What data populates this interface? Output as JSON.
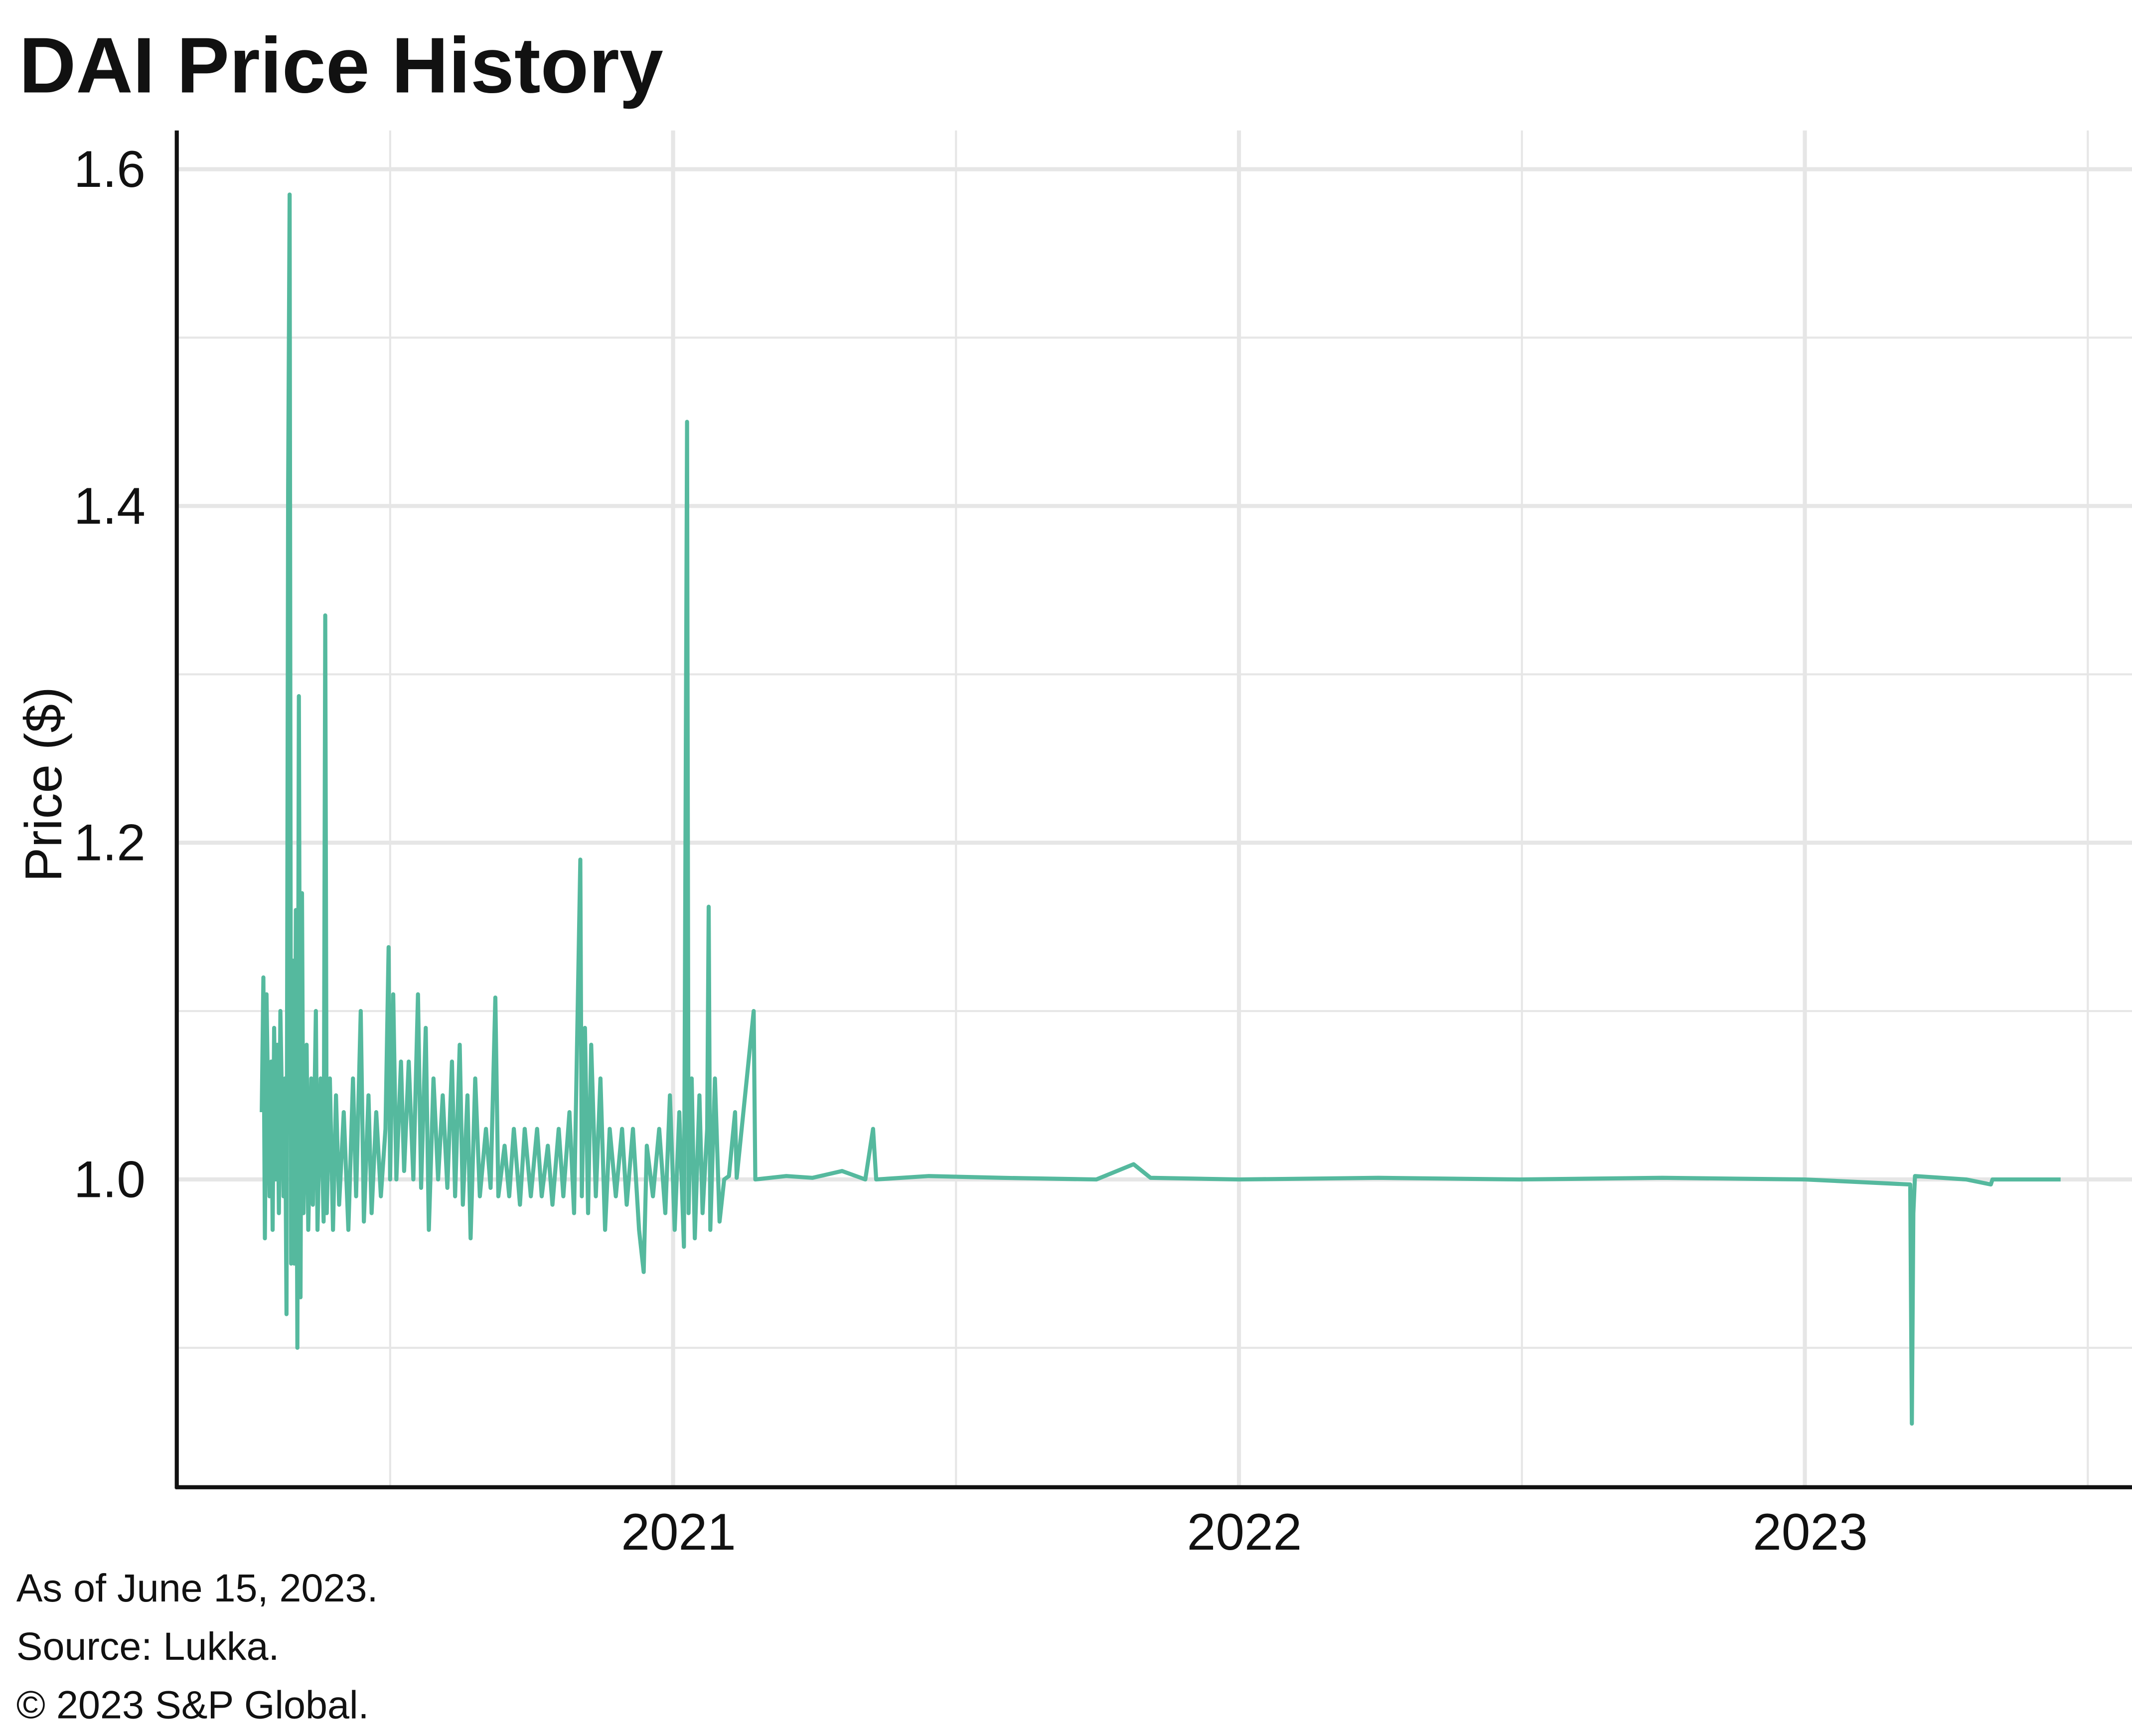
{
  "chart_data": {
    "type": "line",
    "title": "DAI Price History",
    "xlabel": "",
    "ylabel": "Price ($)",
    "xlim": [
      "2020-02-15",
      "2023-07-31"
    ],
    "ylim": [
      0.818,
      1.623
    ],
    "grid": true,
    "legend": "none",
    "x_ticks": [
      "2021",
      "2022",
      "2023"
    ],
    "y_ticks": [
      "1.0",
      "1.2",
      "1.4",
      "1.6"
    ],
    "y_tick_values": [
      1.0,
      1.2,
      1.4,
      1.6
    ],
    "y_minor_gridlines": [
      0.9,
      1.1,
      1.3,
      1.5
    ],
    "x_tick_values": [
      2021,
      2022,
      2023
    ],
    "x_minor_gridlines": [
      2020.5,
      2021.5,
      2022.5,
      2023.5
    ],
    "line_color": "#55b99e",
    "series": [
      {
        "points": [
          [
            "2020-04-10",
            1.04
          ],
          [
            "2020-04-11",
            1.12
          ],
          [
            "2020-04-12",
            0.965
          ],
          [
            "2020-04-13",
            1.11
          ],
          [
            "2020-04-15",
            0.99
          ],
          [
            "2020-04-16",
            1.07
          ],
          [
            "2020-04-17",
            0.97
          ],
          [
            "2020-04-18",
            1.09
          ],
          [
            "2020-04-19",
            1.0
          ],
          [
            "2020-04-20",
            1.08
          ],
          [
            "2020-04-21",
            0.98
          ],
          [
            "2020-04-22",
            1.1
          ],
          [
            "2020-04-24",
            0.99
          ],
          [
            "2020-04-25",
            1.06
          ],
          [
            "2020-04-26",
            0.92
          ],
          [
            "2020-04-27",
            1.41
          ],
          [
            "2020-04-28",
            1.585
          ],
          [
            "2020-04-29",
            0.95
          ],
          [
            "2020-04-30",
            1.13
          ],
          [
            "2020-05-01",
            0.95
          ],
          [
            "2020-05-02",
            1.16
          ],
          [
            "2020-05-03",
            0.9
          ],
          [
            "2020-05-04",
            1.287
          ],
          [
            "2020-05-05",
            0.93
          ],
          [
            "2020-05-06",
            1.17
          ],
          [
            "2020-05-07",
            0.98
          ],
          [
            "2020-05-09",
            1.08
          ],
          [
            "2020-05-10",
            0.97
          ],
          [
            "2020-05-12",
            1.06
          ],
          [
            "2020-05-13",
            0.985
          ],
          [
            "2020-05-15",
            1.1
          ],
          [
            "2020-05-16",
            0.97
          ],
          [
            "2020-05-18",
            1.06
          ],
          [
            "2020-05-20",
            0.975
          ],
          [
            "2020-05-21",
            1.335
          ],
          [
            "2020-05-22",
            0.98
          ],
          [
            "2020-05-24",
            1.06
          ],
          [
            "2020-05-26",
            0.97
          ],
          [
            "2020-05-28",
            1.05
          ],
          [
            "2020-05-30",
            0.985
          ],
          [
            "2020-06-02",
            1.04
          ],
          [
            "2020-06-05",
            0.97
          ],
          [
            "2020-06-08",
            1.06
          ],
          [
            "2020-06-10",
            0.99
          ],
          [
            "2020-06-13",
            1.1
          ],
          [
            "2020-06-15",
            0.975
          ],
          [
            "2020-06-18",
            1.05
          ],
          [
            "2020-06-20",
            0.98
          ],
          [
            "2020-06-23",
            1.04
          ],
          [
            "2020-06-26",
            0.99
          ],
          [
            "2020-06-29",
            1.03
          ],
          [
            "2020-07-01",
            1.138
          ],
          [
            "2020-07-02",
            1.0
          ],
          [
            "2020-07-04",
            1.11
          ],
          [
            "2020-07-06",
            1.0
          ],
          [
            "2020-07-09",
            1.07
          ],
          [
            "2020-07-11",
            1.005
          ],
          [
            "2020-07-14",
            1.07
          ],
          [
            "2020-07-17",
            1.0
          ],
          [
            "2020-07-20",
            1.11
          ],
          [
            "2020-07-22",
            0.995
          ],
          [
            "2020-07-25",
            1.09
          ],
          [
            "2020-07-27",
            0.97
          ],
          [
            "2020-07-30",
            1.06
          ],
          [
            "2020-08-02",
            1.0
          ],
          [
            "2020-08-05",
            1.05
          ],
          [
            "2020-08-08",
            0.995
          ],
          [
            "2020-08-11",
            1.07
          ],
          [
            "2020-08-13",
            0.99
          ],
          [
            "2020-08-16",
            1.08
          ],
          [
            "2020-08-18",
            0.985
          ],
          [
            "2020-08-21",
            1.05
          ],
          [
            "2020-08-23",
            0.965
          ],
          [
            "2020-08-26",
            1.06
          ],
          [
            "2020-08-29",
            0.99
          ],
          [
            "2020-09-02",
            1.03
          ],
          [
            "2020-09-05",
            0.995
          ],
          [
            "2020-09-08",
            1.108
          ],
          [
            "2020-09-10",
            0.99
          ],
          [
            "2020-09-14",
            1.02
          ],
          [
            "2020-09-17",
            0.99
          ],
          [
            "2020-09-20",
            1.03
          ],
          [
            "2020-09-24",
            0.985
          ],
          [
            "2020-09-27",
            1.03
          ],
          [
            "2020-10-01",
            0.99
          ],
          [
            "2020-10-05",
            1.03
          ],
          [
            "2020-10-08",
            0.99
          ],
          [
            "2020-10-12",
            1.02
          ],
          [
            "2020-10-15",
            0.985
          ],
          [
            "2020-10-19",
            1.03
          ],
          [
            "2020-10-22",
            0.99
          ],
          [
            "2020-10-26",
            1.04
          ],
          [
            "2020-10-29",
            0.98
          ],
          [
            "2020-11-02",
            1.19
          ],
          [
            "2020-11-03",
            0.99
          ],
          [
            "2020-11-05",
            1.09
          ],
          [
            "2020-11-07",
            0.98
          ],
          [
            "2020-11-09",
            1.08
          ],
          [
            "2020-11-12",
            0.99
          ],
          [
            "2020-11-15",
            1.06
          ],
          [
            "2020-11-18",
            0.97
          ],
          [
            "2020-11-21",
            1.03
          ],
          [
            "2020-11-25",
            0.99
          ],
          [
            "2020-11-29",
            1.03
          ],
          [
            "2020-12-02",
            0.985
          ],
          [
            "2020-12-06",
            1.03
          ],
          [
            "2020-12-10",
            0.97
          ],
          [
            "2020-12-13",
            0.945
          ],
          [
            "2020-12-15",
            1.02
          ],
          [
            "2020-12-19",
            0.99
          ],
          [
            "2020-12-23",
            1.03
          ],
          [
            "2020-12-27",
            0.98
          ],
          [
            "2020-12-30",
            1.05
          ],
          [
            "2021-01-02",
            0.97
          ],
          [
            "2021-01-05",
            1.04
          ],
          [
            "2021-01-08",
            0.96
          ],
          [
            "2021-01-10",
            1.45
          ],
          [
            "2021-01-11",
            0.98
          ],
          [
            "2021-01-13",
            1.06
          ],
          [
            "2021-01-15",
            0.965
          ],
          [
            "2021-01-18",
            1.05
          ],
          [
            "2021-01-20",
            0.98
          ],
          [
            "2021-01-23",
            1.03
          ],
          [
            "2021-01-24",
            1.162
          ],
          [
            "2021-01-25",
            0.97
          ],
          [
            "2021-01-28",
            1.06
          ],
          [
            "2021-01-31",
            0.975
          ],
          [
            "2021-02-03",
            1.0
          ],
          [
            "2021-02-06",
            1.002
          ],
          [
            "2021-02-10",
            1.04
          ],
          [
            "2021-02-11",
            1.001
          ],
          [
            "2021-02-22",
            1.1
          ],
          [
            "2021-02-23",
            1.0
          ],
          [
            "2021-03-15",
            1.002
          ],
          [
            "2021-04-01",
            1.001
          ],
          [
            "2021-04-20",
            1.005
          ],
          [
            "2021-05-05",
            1.0
          ],
          [
            "2021-05-10",
            1.03
          ],
          [
            "2021-05-12",
            1.0
          ],
          [
            "2021-06-15",
            1.002
          ],
          [
            "2021-08-01",
            1.001
          ],
          [
            "2021-10-01",
            1.0
          ],
          [
            "2021-10-25",
            1.009
          ],
          [
            "2021-11-05",
            1.001
          ],
          [
            "2022-01-01",
            1.0
          ],
          [
            "2022-04-01",
            1.001
          ],
          [
            "2022-07-01",
            1.0
          ],
          [
            "2022-10-01",
            1.001
          ],
          [
            "2023-01-01",
            1.0
          ],
          [
            "2023-03-10",
            0.997
          ],
          [
            "2023-03-11",
            0.855
          ],
          [
            "2023-03-12",
            0.98
          ],
          [
            "2023-03-13",
            1.002
          ],
          [
            "2023-04-15",
            1.0
          ],
          [
            "2023-05-01",
            0.997
          ],
          [
            "2023-05-02",
            1.0
          ],
          [
            "2023-06-15",
            1.0
          ]
        ]
      }
    ]
  },
  "footer": {
    "line1": "As of June 15, 2023.",
    "line2": "Source: Lukka.",
    "line3": "© 2023 S&P Global."
  }
}
